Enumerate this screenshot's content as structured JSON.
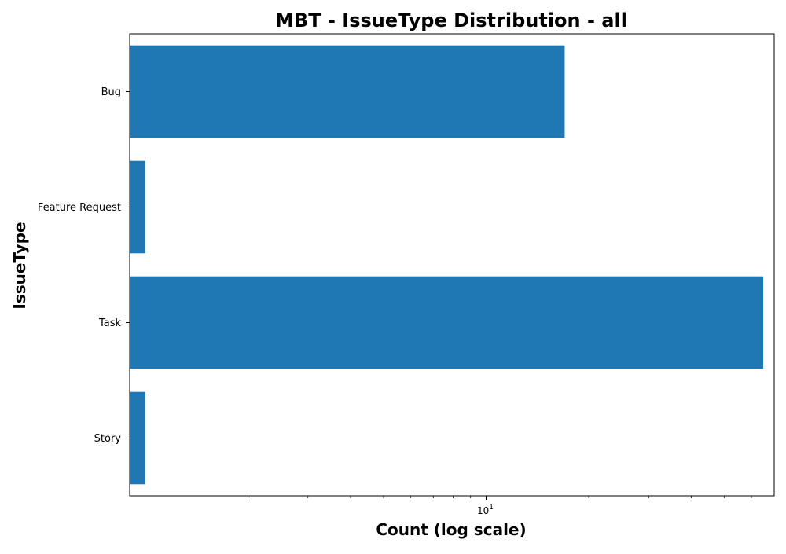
{
  "chart_data": {
    "type": "bar",
    "orientation": "horizontal",
    "title": "MBT - IssueType Distribution - all",
    "xlabel": "Count (log scale)",
    "ylabel": "IssueType",
    "xscale": "log",
    "xlim": [
      0.9,
      70
    ],
    "categories": [
      "Bug",
      "Feature Request",
      "Task",
      "Story"
    ],
    "values": [
      17,
      1,
      65,
      1
    ],
    "x_major_ticks": [
      {
        "value": 10,
        "base": "10",
        "exponent": "1"
      }
    ],
    "x_minor_ticks": [
      2,
      3,
      4,
      5,
      6,
      7,
      8,
      9,
      20,
      30,
      40,
      50,
      60
    ],
    "bar_color": "#1f77b4",
    "grid": false,
    "legend": "none"
  }
}
